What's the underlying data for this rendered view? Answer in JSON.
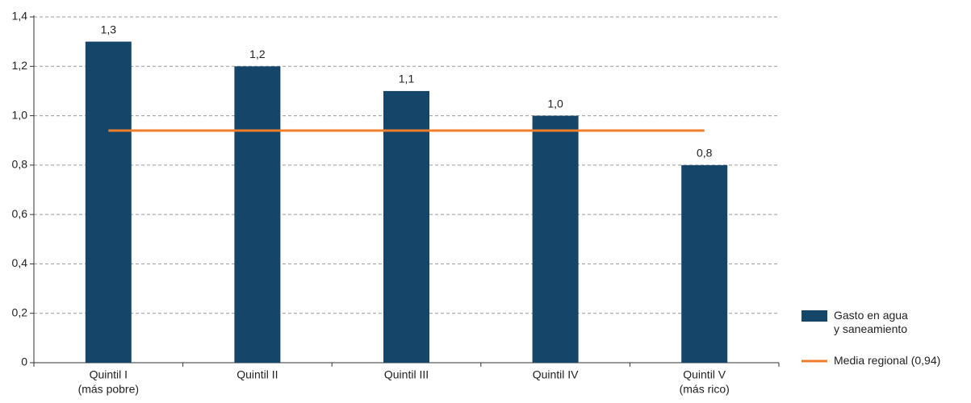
{
  "chart_data": {
    "type": "bar",
    "categories": [
      [
        "Quintil I",
        "(más pobre)"
      ],
      [
        "Quintil II"
      ],
      [
        "Quintil III"
      ],
      [
        "Quintil IV"
      ],
      [
        "Quintil V",
        "(más rico)"
      ]
    ],
    "series": [
      {
        "name": "Gasto en agua y saneamiento",
        "type": "bar",
        "color": "#15466a",
        "values": [
          1.3,
          1.2,
          1.1,
          1.0,
          0.8
        ],
        "value_labels": [
          "1,3",
          "1,2",
          "1,1",
          "1,0",
          "0,8"
        ]
      },
      {
        "name": "Media regional (0,94)",
        "type": "line",
        "color": "#f07d2a",
        "values": [
          0.94,
          0.94,
          0.94,
          0.94,
          0.94
        ]
      }
    ],
    "ylim": [
      0,
      1.4
    ],
    "yticks": [
      0,
      {
        "value": 0.2,
        "label": "0,2"
      },
      {
        "value": 0.4,
        "label": "0,4"
      },
      {
        "value": 0.6,
        "label": "0,6"
      },
      {
        "value": 0.8,
        "label": "0,8"
      },
      {
        "value": 1.0,
        "label": "1,0"
      },
      {
        "value": 1.2,
        "label": "1,2"
      },
      {
        "value": 1.4,
        "label": "1,4"
      }
    ],
    "grid": true,
    "legend": "right"
  }
}
